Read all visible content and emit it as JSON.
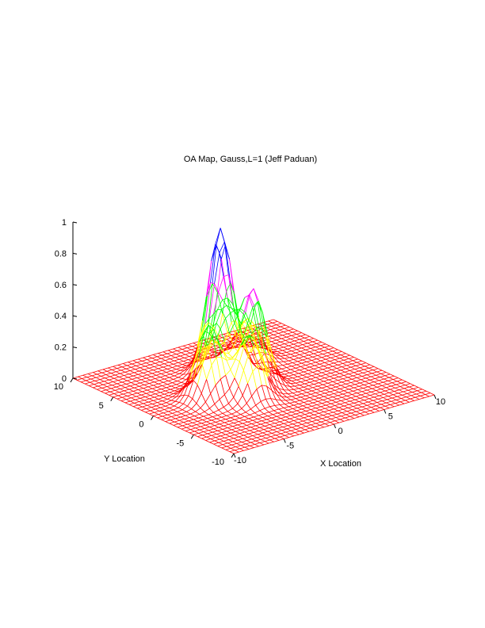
{
  "chart_data": {
    "type": "surface",
    "title": "OA Map, Gauss,L=1 (Jeff Paduan)",
    "xlabel": "X Location",
    "ylabel": "Y Location",
    "zlabel": "",
    "xlim": [
      -10,
      10
    ],
    "ylim": [
      -10,
      10
    ],
    "zlim": [
      0,
      1
    ],
    "xticks": [
      -10,
      -5,
      0,
      5,
      10
    ],
    "yticks": [
      -10,
      -5,
      0,
      5,
      10
    ],
    "zticks": [
      0,
      0.2,
      0.4,
      0.6,
      0.8,
      1
    ],
    "xtick_labels": [
      "-10",
      "-5",
      "0",
      "5",
      "10"
    ],
    "ytick_labels": [
      "-10",
      "-5",
      "0",
      "5",
      "10"
    ],
    "ztick_labels": [
      "0",
      "0.2",
      "0.4",
      "0.6",
      "0.8",
      "1"
    ],
    "grid_points": 41,
    "gaussian_width": 1,
    "peaks": [
      {
        "x": -4.5,
        "y": 0.0,
        "amplitude": 0.47
      },
      {
        "x": -2.0,
        "y": 1.5,
        "amplitude": 0.42
      },
      {
        "x": -0.5,
        "y": 3.5,
        "amplitude": 0.92
      },
      {
        "x": 0.0,
        "y": 0.0,
        "amplitude": 0.6
      },
      {
        "x": -2.0,
        "y": -2.0,
        "amplitude": 0.4
      },
      {
        "x": 3.0,
        "y": 4.5,
        "amplitude": 0.27
      }
    ],
    "colormap": [
      "#ff0000",
      "#ffff00",
      "#00ff00",
      "#ff00ff",
      "#0000ff"
    ],
    "grid": false,
    "legend": "none"
  }
}
